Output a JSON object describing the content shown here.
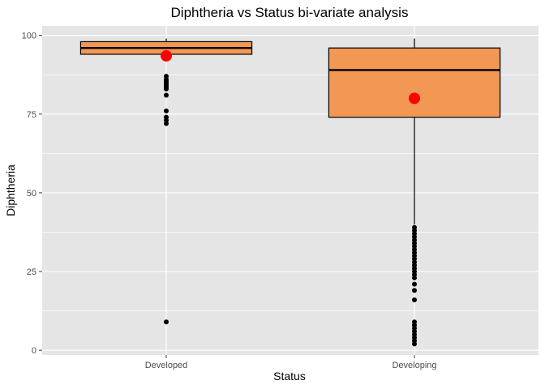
{
  "chart_data": {
    "type": "boxplot",
    "title": "Diphtheria vs Status bi-variate analysis",
    "xlabel": "Status",
    "ylabel": "Diphtheria",
    "categories": [
      "Developed",
      "Developing"
    ],
    "ylim": [
      -1.5,
      103
    ],
    "y_ticks": [
      0,
      25,
      50,
      75,
      100
    ],
    "grid": true,
    "colors": {
      "panel": "#e5e5e5",
      "grid_major": "#ffffff",
      "box_fill": "#f29754",
      "box_stroke": "#000000",
      "outlier": "#000000",
      "mean": "#ff0000"
    },
    "boxes": [
      {
        "category": "Developed",
        "whisker_low": 94,
        "q1": 94,
        "median": 96,
        "q3": 98,
        "whisker_high": 99,
        "mean": 93.5,
        "outliers": [
          87,
          86,
          85.5,
          85,
          84.5,
          84,
          83.5,
          83,
          81,
          76,
          74,
          73,
          72,
          9
        ]
      },
      {
        "category": "Developing",
        "whisker_low": 40,
        "q1": 74,
        "median": 89,
        "q3": 96,
        "whisker_high": 99,
        "mean": 80,
        "outliers": [
          39,
          38,
          37,
          36,
          35,
          34,
          33,
          32,
          31,
          30,
          29,
          28,
          27,
          26,
          25,
          24,
          23,
          21,
          19,
          16,
          9,
          8,
          7,
          6,
          5,
          4,
          3,
          2
        ]
      }
    ]
  }
}
